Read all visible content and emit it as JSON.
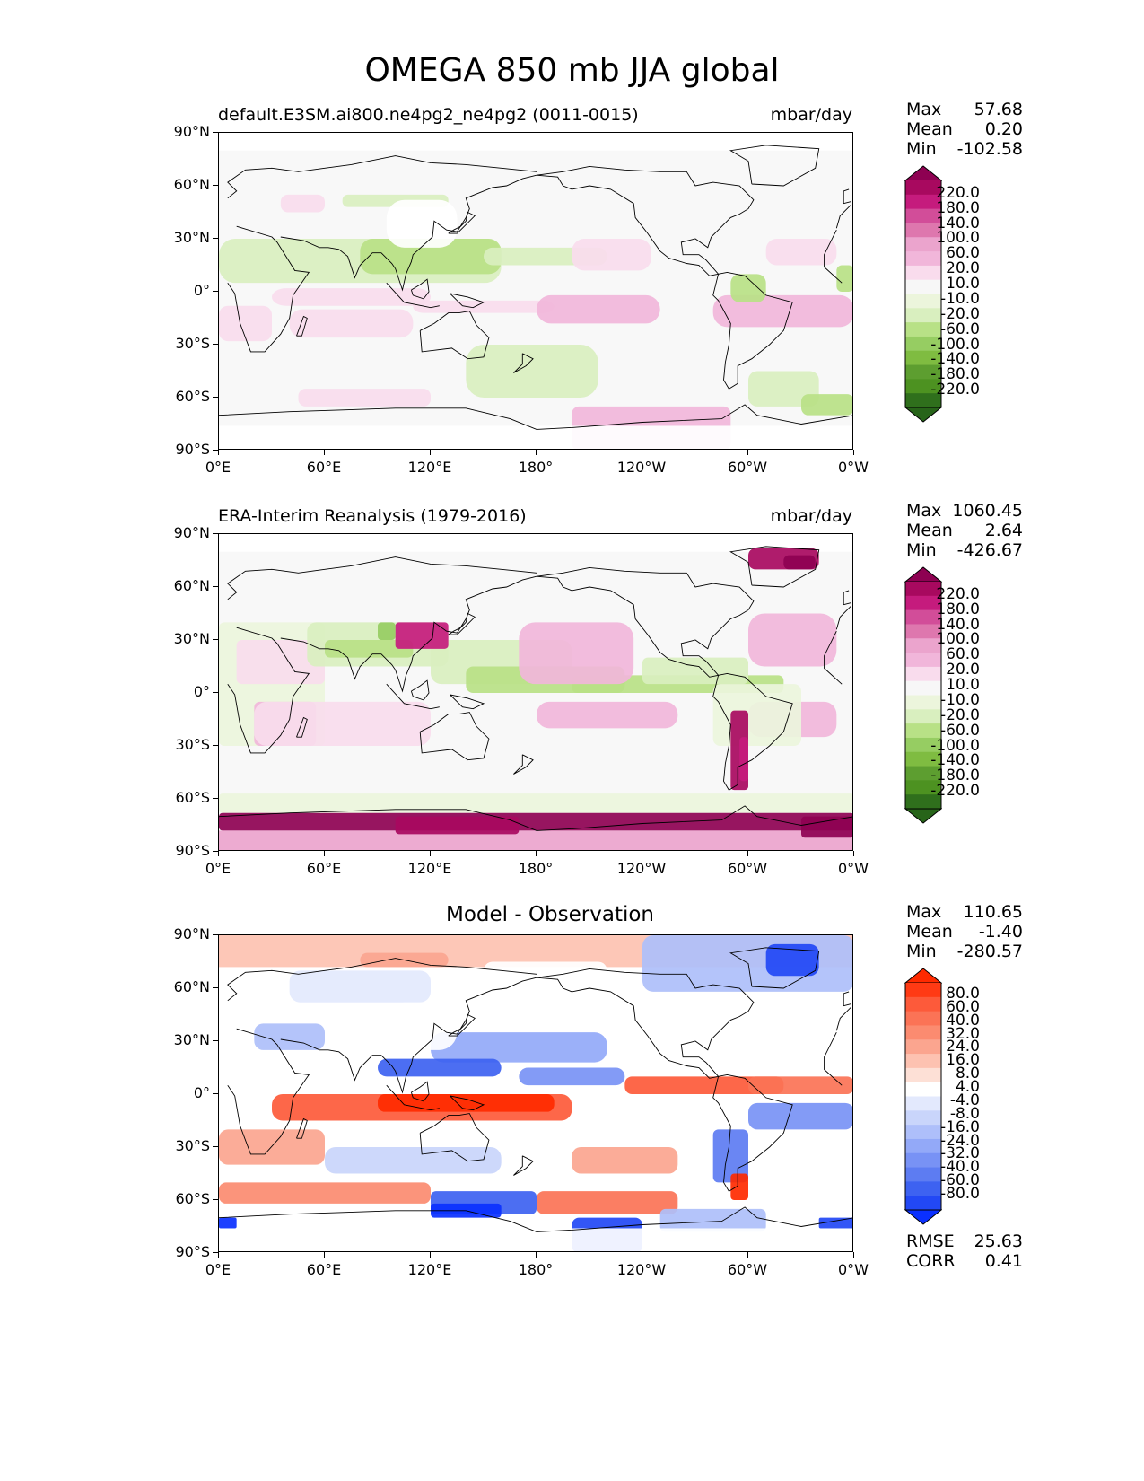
{
  "title": "OMEGA 850 mb JJA global",
  "panels": [
    {
      "id": "model",
      "left_title": "default.E3SM.ai800.ne4pg2_ne4pg2 (0011-0015)",
      "right_title": "mbar/day",
      "center_title": "",
      "stats": {
        "max_label": "Max",
        "max": "57.68",
        "mean_label": "Mean",
        "mean": "0.20",
        "min_label": "Min",
        "min": "-102.58"
      },
      "colorbar": {
        "labels": [
          "220.0",
          "180.0",
          "140.0",
          "100.0",
          "60.0",
          "20.0",
          "10.0",
          "-10.0",
          "-20.0",
          "-60.0",
          "-100.0",
          "-140.0",
          "-180.0",
          "-220.0"
        ],
        "colors": [
          "#8e0152",
          "#a8095f",
          "#c51b7d",
          "#d24d99",
          "#de77ae",
          "#eba4cd",
          "#f1b6da",
          "#f9dced",
          "#f7f7f7",
          "#ecf5dc",
          "#d9efbf",
          "#b8e186",
          "#96cd62",
          "#7fbc41",
          "#5d9e30",
          "#4d9221",
          "#2f6f1c",
          "#276419"
        ],
        "tri_top": "#8e0152",
        "tri_bottom": "#276419"
      }
    },
    {
      "id": "obs",
      "left_title": "ERA-Interim Reanalysis (1979-2016)",
      "right_title": "mbar/day",
      "center_title": "",
      "stats": {
        "max_label": "Max",
        "max": "1060.45",
        "mean_label": "Mean",
        "mean": "2.64",
        "min_label": "Min",
        "min": "-426.67"
      },
      "colorbar": {
        "labels": [
          "220.0",
          "180.0",
          "140.0",
          "100.0",
          "60.0",
          "20.0",
          "10.0",
          "-10.0",
          "-20.0",
          "-60.0",
          "-100.0",
          "-140.0",
          "-180.0",
          "-220.0"
        ],
        "colors": [
          "#8e0152",
          "#a8095f",
          "#c51b7d",
          "#d24d99",
          "#de77ae",
          "#eba4cd",
          "#f1b6da",
          "#f9dced",
          "#f7f7f7",
          "#ecf5dc",
          "#d9efbf",
          "#b8e186",
          "#96cd62",
          "#7fbc41",
          "#5d9e30",
          "#4d9221",
          "#2f6f1c",
          "#276419"
        ],
        "tri_top": "#8e0152",
        "tri_bottom": "#276419"
      }
    },
    {
      "id": "diff",
      "left_title": "",
      "right_title": "",
      "center_title": "Model - Observation",
      "stats": {
        "max_label": "Max",
        "max": "110.65",
        "mean_label": "Mean",
        "mean": "-1.40",
        "min_label": "Min",
        "min": "-280.57"
      },
      "colorbar": {
        "labels": [
          "80.0",
          "60.0",
          "40.0",
          "32.0",
          "24.0",
          "16.0",
          "8.0",
          "4.0",
          "-4.0",
          "-8.0",
          "-16.0",
          "-24.0",
          "-32.0",
          "-40.0",
          "-60.0",
          "-80.0"
        ],
        "colors": [
          "#ff2a00",
          "#ff3a14",
          "#fd5a3a",
          "#fb7356",
          "#fb8b70",
          "#fba58f",
          "#fdc2b1",
          "#fde0d6",
          "#ffffff",
          "#e3e9fd",
          "#c9d5fb",
          "#aebffa",
          "#93a9f8",
          "#7892f5",
          "#5d7cf2",
          "#3d62f1",
          "#2248f5",
          "#0a30ff"
        ],
        "tri_top": "#ff2a00",
        "tri_bottom": "#0a30ff"
      },
      "footer": {
        "rmse_label": "RMSE",
        "rmse": "25.63",
        "corr_label": "CORR",
        "corr": "0.41"
      }
    }
  ],
  "axes": {
    "y_ticks": [
      "90°N",
      "60°N",
      "30°N",
      "0°",
      "30°S",
      "60°S",
      "90°S"
    ],
    "x_ticks": [
      "0°E",
      "60°E",
      "120°E",
      "180°",
      "120°W",
      "60°W",
      "0°W"
    ]
  },
  "chart_data": [
    {
      "type": "heatmap",
      "title": "default.E3SM.ai800.ne4pg2_ne4pg2 (0011-0015)",
      "variable": "OMEGA 850 mb JJA",
      "units": "mbar/day",
      "xlim": [
        0,
        360
      ],
      "ylim": [
        -90,
        90
      ],
      "levels": [
        -220,
        -180,
        -140,
        -100,
        -60,
        -20,
        -10,
        10,
        20,
        60,
        100,
        140,
        180,
        220
      ],
      "max": 57.68,
      "mean": 0.2,
      "min": -102.58
    },
    {
      "type": "heatmap",
      "title": "ERA-Interim Reanalysis (1979-2016)",
      "variable": "OMEGA 850 mb JJA",
      "units": "mbar/day",
      "xlim": [
        0,
        360
      ],
      "ylim": [
        -90,
        90
      ],
      "levels": [
        -220,
        -180,
        -140,
        -100,
        -60,
        -20,
        -10,
        10,
        20,
        60,
        100,
        140,
        180,
        220
      ],
      "max": 1060.45,
      "mean": 2.64,
      "min": -426.67
    },
    {
      "type": "heatmap",
      "title": "Model - Observation",
      "xlim": [
        0,
        360
      ],
      "ylim": [
        -90,
        90
      ],
      "levels": [
        -80,
        -60,
        -40,
        -32,
        -24,
        -16,
        -8,
        -4,
        4,
        8,
        16,
        24,
        32,
        40,
        60,
        80
      ],
      "max": 110.65,
      "mean": -1.4,
      "min": -280.57,
      "rmse": 25.63,
      "corr": 0.41
    }
  ]
}
